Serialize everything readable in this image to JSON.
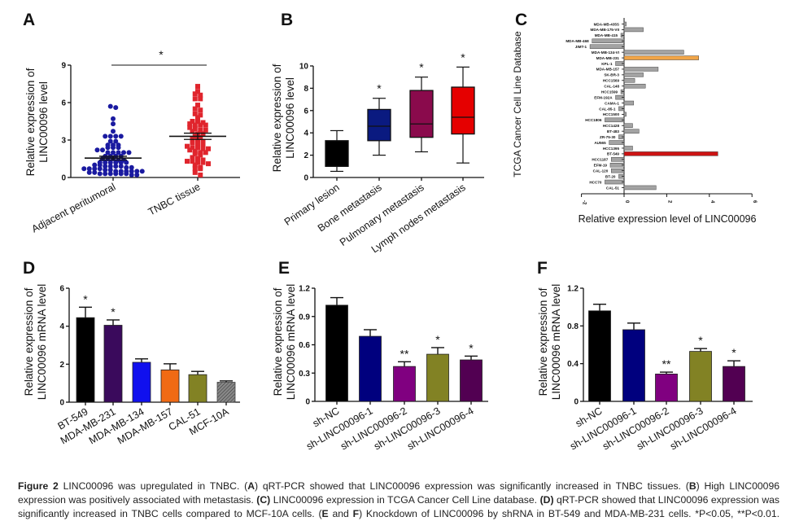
{
  "chart_data": [
    {
      "panel_label": "A",
      "type": "scatter",
      "ylabel": [
        "Relative expression of",
        "LINC00096 level"
      ],
      "categories": [
        "Adjacent peritumoral",
        "TNBC tissue"
      ],
      "ylim": [
        0,
        9
      ],
      "yticks": [
        0,
        3,
        6,
        9
      ],
      "series": [
        {
          "values": [
            5.7,
            5.6,
            4.7,
            4.3,
            3.7,
            3.3,
            3.3,
            3.3,
            3.3,
            2.9,
            2.9,
            2.6,
            2.6,
            2.6,
            2.4,
            2.4,
            2.4,
            2.2,
            2.2,
            2.0,
            2.0,
            2.0,
            2.0,
            2.0,
            1.7,
            1.7,
            1.7,
            1.7,
            1.5,
            1.5,
            1.5,
            1.4,
            1.4,
            1.2,
            1.2,
            1.2,
            1.2,
            1.2,
            1.2,
            1.0,
            1.0,
            0.9,
            0.9,
            0.9,
            0.9,
            0.8,
            0.8,
            0.7,
            0.7,
            0.7,
            0.7,
            0.6,
            0.6,
            0.5,
            0.5,
            0.5,
            0.5,
            0.5,
            0.5,
            0.4,
            0.4,
            0.3,
            0.3,
            0.3,
            0.3,
            0.3,
            0.3,
            0.2,
            0.2
          ],
          "mean": 1.55,
          "sem": 0.15,
          "color": "#1a1aa0",
          "marker": "circle"
        },
        {
          "values": [
            7.3,
            6.9,
            6.7,
            6.6,
            6.3,
            6.3,
            5.8,
            5.5,
            5.4,
            5.1,
            5.0,
            4.8,
            4.5,
            4.5,
            4.4,
            4.3,
            4.2,
            4.2,
            4.2,
            4.0,
            3.9,
            3.8,
            3.8,
            3.7,
            3.5,
            3.5,
            3.3,
            3.2,
            3.1,
            3.0,
            2.9,
            2.8,
            2.7,
            2.6,
            2.5,
            2.4,
            2.4,
            2.3,
            2.3,
            2.2,
            2.1,
            2.0,
            2.0,
            1.9,
            1.8,
            1.6,
            1.5,
            1.4,
            1.3,
            1.3,
            1.2,
            1.2,
            1.1,
            1.0,
            0.8,
            0.7,
            0.7,
            0.4,
            0.2
          ],
          "mean": 3.3,
          "sem": 0.25,
          "color": "#e0252d",
          "marker": "square"
        }
      ],
      "significance": "*"
    },
    {
      "panel_label": "B",
      "type": "box",
      "ylabel": [
        "Relative expression of",
        "LINC00096 level"
      ],
      "categories": [
        "Primary lesion",
        "Bone metastasis",
        "Pulmonary metastasis",
        "Lymph nodes metastasis"
      ],
      "ylim": [
        0,
        10
      ],
      "yticks": [
        0,
        2,
        4,
        6,
        8,
        10
      ],
      "boxes": [
        {
          "min": 0.55,
          "q1": 1.0,
          "median": 1.0,
          "q3": 3.3,
          "max": 4.2,
          "color": "#000000",
          "sig": ""
        },
        {
          "min": 2.0,
          "q1": 3.3,
          "median": 4.6,
          "q3": 6.1,
          "max": 7.1,
          "color": "#0a1a80",
          "sig": "*"
        },
        {
          "min": 2.3,
          "q1": 3.6,
          "median": 4.8,
          "q3": 7.8,
          "max": 9.0,
          "color": "#8a0a4c",
          "sig": "*"
        },
        {
          "min": 1.3,
          "q1": 3.9,
          "median": 5.4,
          "q3": 8.1,
          "max": 9.9,
          "color": "#e50000",
          "sig": "*"
        }
      ]
    },
    {
      "panel_label": "C",
      "type": "bar",
      "orientation": "horizontal",
      "xlabel": "Relative expression level of LINC00096",
      "ylabel": "TCGA Cancer Cell Line Database",
      "xlim": [
        -2,
        6
      ],
      "xticks": [
        -2,
        0,
        2,
        4,
        6
      ],
      "categories": [
        "MDA-MB-435S",
        "MDA-MB-175-VII",
        "MDA-MB-415",
        "MDA-MB-468",
        "JIMT-1",
        "MDA-MB-134-VI",
        "MDA-MB-231",
        "KPL-1",
        "MDA-MB-157",
        "SK-BR-3",
        "HCC1569",
        "CAL-148",
        "HCC1599",
        "EFM-192A",
        "CAMA-1",
        "CAL-85-1",
        "HCC1500",
        "HCC1806",
        "HCC1428",
        "BT-483",
        "ZR-75-30",
        "AU565",
        "HCC1395",
        "BT-549",
        "HCC1187",
        "EFM-19",
        "CAL-120",
        "BT-20",
        "HCC70",
        "CAL-51"
      ],
      "values": [
        0.1,
        0.9,
        -0.15,
        -1.5,
        -1.6,
        2.8,
        3.5,
        -0.4,
        1.6,
        0.9,
        0.5,
        1.0,
        -0.15,
        -0.4,
        0.45,
        -0.25,
        0.1,
        -0.9,
        0.4,
        0.7,
        -0.25,
        -0.7,
        0.4,
        4.4,
        -0.6,
        -0.65,
        -0.6,
        -0.25,
        -0.9,
        1.5
      ],
      "colors": {
        "default": "#a3a3a3",
        "MDA-MB-231": "#f0a548",
        "BT-549": "#cc1414"
      }
    },
    {
      "panel_label": "D",
      "type": "bar",
      "ylabel": [
        "Relative expression of",
        "LINC00096 mRNA level"
      ],
      "categories": [
        "BT-549",
        "MDA-MB-231",
        "MDA-MB-134",
        "MDA-MB-157",
        "CAL-51",
        "MCF-10A"
      ],
      "values": [
        4.45,
        4.05,
        2.1,
        1.7,
        1.45,
        1.05
      ],
      "errors": [
        0.55,
        0.28,
        0.18,
        0.32,
        0.17,
        0.07
      ],
      "sig": [
        "*",
        "*",
        "",
        "",
        "",
        ""
      ],
      "colors": [
        "#000000",
        "#3a0a5c",
        "#1010ee",
        "#f06a14",
        "#828224",
        "#777777"
      ],
      "ylim": [
        0,
        6
      ],
      "yticks": [
        0,
        2,
        4,
        6
      ]
    },
    {
      "panel_label": "E",
      "type": "bar",
      "ylabel": [
        "Relative expression of",
        "LINC00096 mRNA level"
      ],
      "categories": [
        "sh-NC",
        "sh-LINC00096-1",
        "sh-LINC00096-2",
        "sh-LINC00096-3",
        "sh-LINC00096-4"
      ],
      "values": [
        1.02,
        0.69,
        0.37,
        0.5,
        0.44
      ],
      "errors": [
        0.08,
        0.07,
        0.05,
        0.07,
        0.04
      ],
      "sig": [
        "",
        "",
        "**",
        "*",
        "*"
      ],
      "colors": [
        "#000000",
        "#00007e",
        "#800080",
        "#828224",
        "#520052"
      ],
      "ylim": [
        0,
        1.2
      ],
      "yticks": [
        0,
        0.3,
        0.6,
        0.9,
        1.2
      ]
    },
    {
      "panel_label": "F",
      "type": "bar",
      "ylabel": [
        "Relative expression of",
        "LINC00096 mRNA level"
      ],
      "categories": [
        "sh-NC",
        "sh-LINC00096-1",
        "sh-LINC00096-2",
        "sh-LINC00096-3",
        "sh-LINC00096-4"
      ],
      "values": [
        0.96,
        0.76,
        0.29,
        0.53,
        0.37
      ],
      "errors": [
        0.07,
        0.07,
        0.02,
        0.03,
        0.06
      ],
      "sig": [
        "",
        "",
        "**",
        "*",
        "*"
      ],
      "colors": [
        "#000000",
        "#00007e",
        "#800080",
        "#828224",
        "#520052"
      ],
      "ylim": [
        0,
        1.2
      ],
      "yticks": [
        0,
        0.4,
        0.8,
        1.2
      ]
    }
  ],
  "caption": {
    "label": "Figure 2",
    "parts": [
      " LINC00096 was upregulated in TNBC. (",
      "A",
      ") qRT-PCR showed that LINC00096 expression was significantly increased in TNBC tissues. (",
      "B",
      ") High LINC00096 expression was positively associated with metastasis. ",
      "(C)",
      " LINC00096 expression in TCGA Cancer Cell Line database. ",
      "(D)",
      " qRT-PCR showed that LINC00096 expression was significantly increased in TNBC cells compared to MCF-10A cells. (",
      "E",
      " and ",
      "F",
      ") Knockdown of LINC00096 by shRNA in BT-549 and MDA-MB-231 cells. *P<0.05, **P<0.01."
    ]
  }
}
